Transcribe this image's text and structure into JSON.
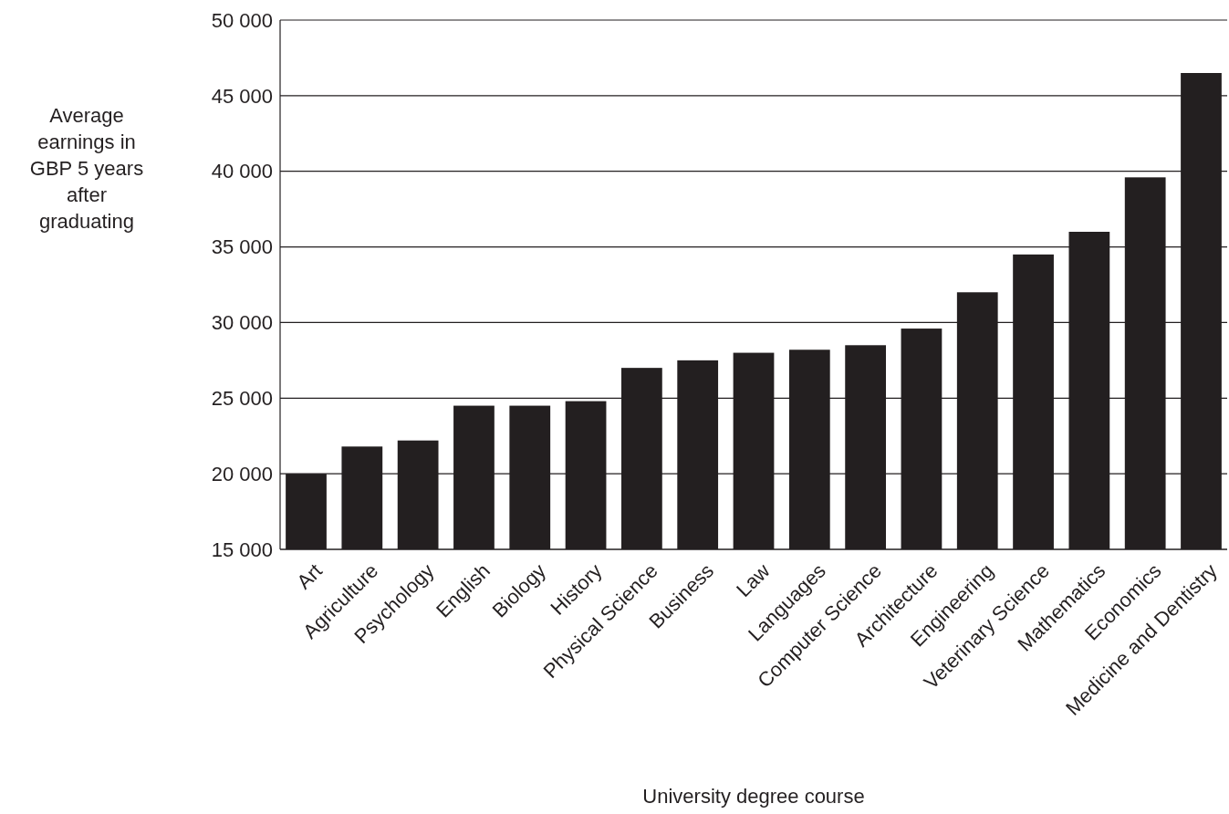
{
  "chart_data": {
    "type": "bar",
    "xlabel": "University degree course",
    "ylabel": "Average earnings in GBP 5 years after graduating",
    "categories": [
      "Art",
      "Agriculture",
      "Psychology",
      "English",
      "Biology",
      "History",
      "Physical Science",
      "Business",
      "Law",
      "Languages",
      "Computer Science",
      "Architecture",
      "Engineering",
      "Veterinary Science",
      "Mathematics",
      "Economics",
      "Medicine and Dentistry"
    ],
    "values": [
      20000,
      21800,
      22200,
      24500,
      24500,
      24800,
      27000,
      27500,
      28000,
      28200,
      28500,
      29600,
      32000,
      34500,
      36000,
      39600,
      46500
    ],
    "color": "#231f20",
    "ylim": [
      15000,
      50000
    ],
    "yticks": [
      {
        "value": 15000,
        "label": "15 000"
      },
      {
        "value": 20000,
        "label": "20 000"
      },
      {
        "value": 25000,
        "label": "25 000"
      },
      {
        "value": 30000,
        "label": "30 000"
      },
      {
        "value": 35000,
        "label": "35 000"
      },
      {
        "value": 40000,
        "label": "40 000"
      },
      {
        "value": 45000,
        "label": "45 000"
      },
      {
        "value": 50000,
        "label": "50 000"
      }
    ],
    "grid": "y"
  }
}
